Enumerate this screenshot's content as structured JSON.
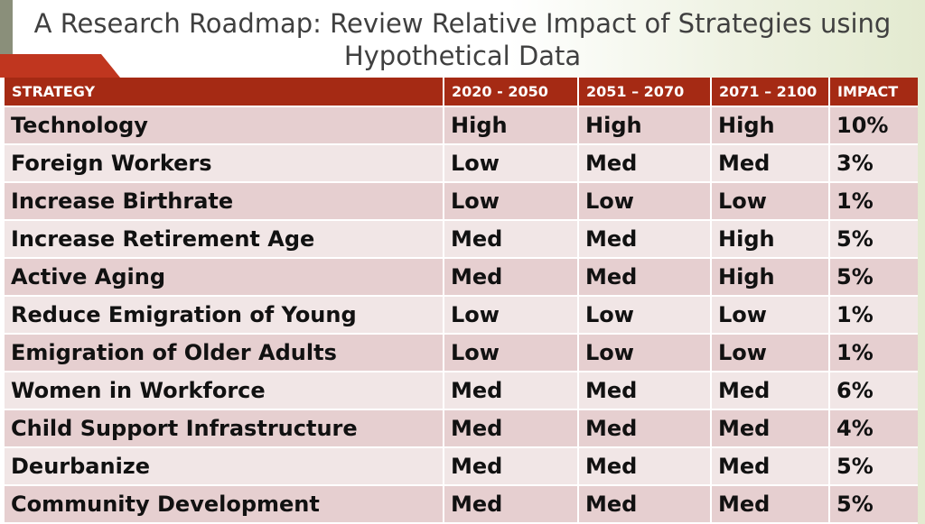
{
  "slide": {
    "title_line1": "A Research Roadmap: Review Relative Impact of Strategies using",
    "title_line2": "Hypothetical Data"
  },
  "table": {
    "headers": [
      "STRATEGY",
      "2020  - 2050",
      "2051 – 2070",
      "2071 – 2100",
      "IMPACT"
    ],
    "rows": [
      [
        "Technology",
        "High",
        "High",
        "High",
        "10%"
      ],
      [
        "Foreign Workers",
        "Low",
        "Med",
        "Med",
        "3%"
      ],
      [
        "Increase Birthrate",
        "Low",
        "Low",
        "Low",
        "1%"
      ],
      [
        "Increase Retirement Age",
        "Med",
        "Med",
        "High",
        "5%"
      ],
      [
        "Active Aging",
        "Med",
        "Med",
        "High",
        "5%"
      ],
      [
        "Reduce Emigration of Young",
        "Low",
        "Low",
        "Low",
        "1%"
      ],
      [
        "Emigration of Older Adults",
        "Low",
        "Low",
        "Low",
        "1%"
      ],
      [
        "Women in Workforce",
        "Med",
        "Med",
        "Med",
        "6%"
      ],
      [
        "Child Support Infrastructure",
        "Med",
        "Med",
        "Med",
        "4%"
      ],
      [
        "Deurbanize",
        "Med",
        "Med",
        "Med",
        "5%"
      ],
      [
        "Community Development",
        "Med",
        "Med",
        "Med",
        "5%"
      ]
    ]
  },
  "colors": {
    "header_bg": "#a52a14",
    "accent_red": "#c0361f",
    "row_dark": "#e6cfd0",
    "row_light": "#f1e6e6"
  }
}
